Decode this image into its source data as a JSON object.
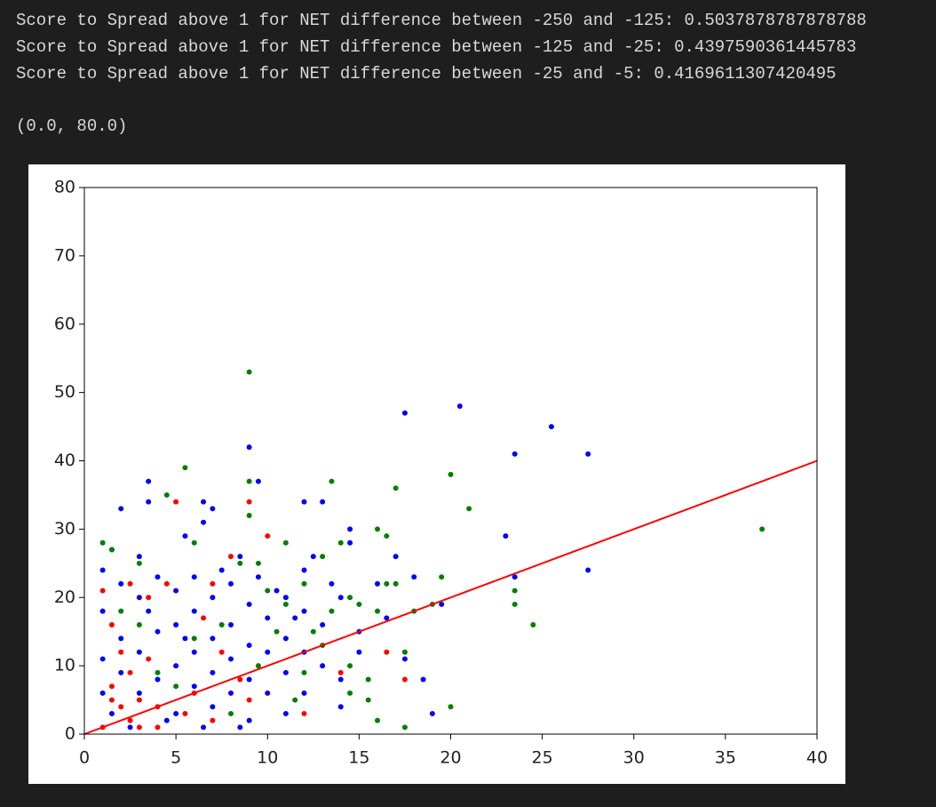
{
  "output_lines": [
    "Score to Spread above 1 for NET difference between -250 and -125: 0.5037878787878788",
    "Score to Spread above 1 for NET difference between -125 and -25: 0.4397590361445783",
    "Score to Spread above 1 for NET difference between -25 and -5: 0.4169611307420495"
  ],
  "output_result": "(0.0, 80.0)",
  "chart_data": {
    "type": "scatter",
    "xlim": [
      0,
      40
    ],
    "ylim": [
      0,
      80
    ],
    "xticks": [
      0,
      5,
      10,
      15,
      20,
      25,
      30,
      35,
      40
    ],
    "yticks": [
      0,
      10,
      20,
      30,
      40,
      50,
      60,
      70,
      80
    ],
    "series": [
      {
        "color": "#0000ff",
        "x": [
          9,
          9.5,
          3.5,
          2,
          3.5,
          6.5,
          7,
          5.5,
          6.5,
          12,
          13,
          17.5,
          20.5,
          25.5,
          23.5,
          27.5,
          27.5,
          23.5,
          23,
          19.5,
          18.5,
          19,
          17,
          14.5,
          14.5,
          12.5,
          16,
          15,
          15,
          14,
          17.5,
          1,
          1,
          1,
          1,
          2,
          2,
          2,
          3,
          3,
          3,
          4,
          4,
          4,
          5,
          5,
          5,
          5,
          6,
          6,
          6,
          6,
          7,
          7,
          7,
          7,
          8,
          8,
          8,
          8,
          9,
          9,
          9,
          9,
          10,
          10,
          10,
          11,
          11,
          11,
          11,
          12,
          12,
          12,
          12,
          13,
          13,
          14,
          14,
          2.5,
          4.5,
          6.5,
          8.5,
          1.5,
          3.5,
          5.5,
          7.5,
          9.5,
          10.5,
          11.5,
          13.5,
          16.5,
          18,
          3,
          1.5,
          8.5
        ],
        "values": [
          42,
          37,
          37,
          33,
          34,
          34,
          33,
          29,
          31,
          34,
          34,
          47,
          48,
          45,
          41,
          41,
          24,
          23,
          29,
          19,
          8,
          3,
          26,
          30,
          28,
          26,
          22,
          15,
          12,
          4,
          11,
          24,
          18,
          11,
          6,
          22,
          14,
          9,
          20,
          12,
          6,
          23,
          15,
          8,
          21,
          16,
          10,
          3,
          23,
          18,
          12,
          7,
          20,
          14,
          9,
          4,
          22,
          16,
          11,
          6,
          19,
          13,
          8,
          2,
          17,
          12,
          6,
          20,
          14,
          9,
          3,
          24,
          18,
          12,
          6,
          16,
          10,
          20,
          8,
          1,
          2,
          1,
          1,
          3,
          18,
          14,
          24,
          23,
          21,
          17,
          22,
          17,
          23,
          26,
          27,
          26
        ]
      },
      {
        "color": "#008000",
        "x": [
          9,
          5.5,
          4.5,
          9,
          13.5,
          17,
          20,
          21,
          9,
          16,
          16.5,
          37,
          23.5,
          23.5,
          24.5,
          19.5,
          20,
          17.5,
          17.5,
          16.5,
          17,
          16,
          19,
          18,
          1,
          1.5,
          3,
          6,
          8.5,
          9.5,
          11,
          12,
          13,
          14,
          10,
          11,
          12.5,
          13.5,
          14.5,
          15,
          14.5,
          15.5,
          15.5,
          16,
          13,
          12,
          11.5,
          10.5,
          9.5,
          8,
          7.5,
          6,
          4,
          3,
          2,
          5,
          14.5
        ],
        "values": [
          53,
          39,
          35,
          37,
          37,
          36,
          38,
          33,
          32,
          30,
          29,
          30,
          21,
          19,
          16,
          23,
          4,
          1,
          12,
          22,
          22,
          18,
          19,
          18,
          28,
          27,
          25,
          28,
          25,
          25,
          28,
          22,
          26,
          28,
          21,
          19,
          15,
          18,
          20,
          19,
          10,
          5,
          8,
          2,
          13,
          9,
          5,
          15,
          10,
          3,
          16,
          14,
          9,
          16,
          18,
          7,
          6
        ]
      },
      {
        "color": "#ff0000",
        "x": [
          5,
          9,
          10,
          8,
          1,
          2.5,
          1.5,
          3.5,
          4.5,
          6.5,
          7,
          2,
          3.5,
          1.5,
          2.5,
          3,
          4,
          1,
          2.5,
          3,
          4,
          5.5,
          6,
          7,
          7.5,
          8.5,
          9,
          12,
          14,
          16.5,
          17.5,
          1.5,
          2
        ],
        "values": [
          34,
          34,
          29,
          26,
          21,
          22,
          16,
          20,
          22,
          17,
          22,
          12,
          11,
          7,
          9,
          5,
          4,
          1,
          2,
          1,
          1,
          3,
          6,
          2,
          12,
          8,
          5,
          3,
          9,
          12,
          8,
          5,
          4
        ]
      },
      {
        "kind": "line",
        "color": "#ff0000",
        "x": [
          0,
          40
        ],
        "values": [
          0,
          40
        ]
      }
    ]
  }
}
